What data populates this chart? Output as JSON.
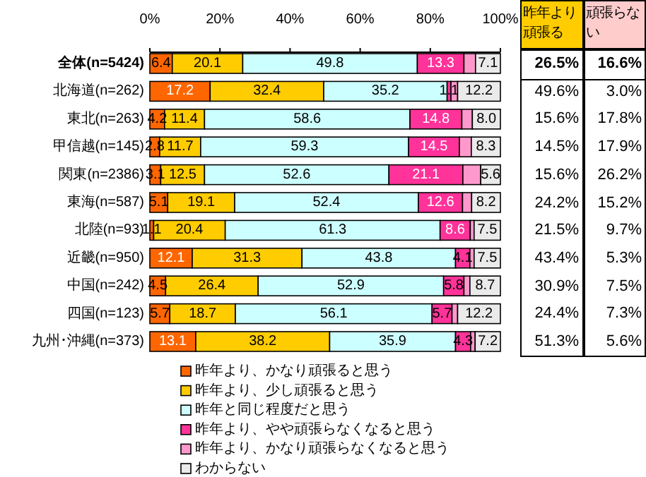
{
  "chart_data": [
    {
      "type": "bar",
      "orientation": "horizontal",
      "stacked": true,
      "legend": "bottom",
      "xlim": [
        0,
        100
      ],
      "xticks": [
        {
          "value": 0,
          "label": "0%"
        },
        {
          "value": 20,
          "label": "20%"
        },
        {
          "value": 40,
          "label": "40%"
        },
        {
          "value": 60,
          "label": "60%"
        },
        {
          "value": 80,
          "label": "80%"
        },
        {
          "value": 100,
          "label": "100%"
        }
      ],
      "categories": [
        "全体(n=5424)",
        "北海道(n=262)",
        "東北(n=263)",
        "甲信越(n=145)",
        "関東(n=2386)",
        "東海(n=587)",
        "北陸(n=93)",
        "近畿(n=950)",
        "中国(n=242)",
        "四国(n=123)",
        "九州･沖縄(n=373)"
      ],
      "series": [
        {
          "name": "昨年より、かなり頑張ると思う",
          "color": "#ff6600",
          "values": [
            6.4,
            17.2,
            4.2,
            2.8,
            3.1,
            5.1,
            1.1,
            12.1,
            4.5,
            5.7,
            13.1
          ],
          "value_labels": [
            "6.4",
            "17.2",
            "4.2",
            "2.8",
            "3.1",
            "5.1",
            "1.1",
            "12.1",
            "4.5",
            "5.7",
            "13.1"
          ]
        },
        {
          "name": "昨年より、少し頑張ると思う",
          "color": "#ffcc00",
          "values": [
            20.1,
            32.4,
            11.4,
            11.7,
            12.5,
            19.1,
            20.4,
            31.3,
            26.4,
            18.7,
            38.2
          ],
          "value_labels": [
            "20.1",
            "32.4",
            "11.4",
            "11.7",
            "12.5",
            "19.1",
            "20.4",
            "31.3",
            "26.4",
            "18.7",
            "38.2"
          ]
        },
        {
          "name": "昨年と同じ程度だと思う",
          "color": "#ccffff",
          "values": [
            49.8,
            35.2,
            58.6,
            59.3,
            52.6,
            52.4,
            61.3,
            43.8,
            52.9,
            56.1,
            35.9
          ],
          "value_labels": [
            "49.8",
            "35.2",
            "58.6",
            "59.3",
            "52.6",
            "52.4",
            "61.3",
            "43.8",
            "52.9",
            "56.1",
            "35.9"
          ]
        },
        {
          "name": "昨年より、やや頑張らなくなると思う",
          "color": "#ff3399",
          "values": [
            13.3,
            1.1,
            14.8,
            14.5,
            21.1,
            12.6,
            8.6,
            4.1,
            5.8,
            5.7,
            4.3
          ],
          "value_labels": [
            "13.3",
            "1.1",
            "14.8",
            "14.5",
            "21.1",
            "12.6",
            "8.6",
            "4.1",
            "5.8",
            "5.7",
            "4.3"
          ]
        },
        {
          "name": "昨年より、かなり頑張らなくなると思う",
          "color": "#ff99cc",
          "values": [
            3.3,
            1.9,
            3.0,
            3.4,
            5.1,
            2.6,
            1.1,
            1.2,
            1.7,
            1.6,
            1.3
          ]
        },
        {
          "name": "わからない",
          "color": "#eaeaea",
          "values": [
            7.1,
            12.2,
            8.0,
            8.3,
            5.6,
            8.2,
            7.5,
            7.5,
            8.7,
            12.2,
            7.2
          ],
          "value_labels": [
            "7.1",
            "12.2",
            "8.0",
            "8.3",
            "5.6",
            "8.2",
            "7.5",
            "7.5",
            "8.7",
            "12.2",
            "7.2"
          ]
        }
      ]
    },
    {
      "type": "other",
      "categories": [
        "昨年より頑張る",
        "頑張らない"
      ],
      "colors": [
        "#ffcc00",
        "#ffcccc"
      ],
      "cell_labels": [
        [
          "26.5%",
          "16.6%"
        ],
        [
          "49.6%",
          "3.0%"
        ],
        [
          "15.6%",
          "17.8%"
        ],
        [
          "14.5%",
          "17.9%"
        ],
        [
          "15.6%",
          "26.2%"
        ],
        [
          "24.2%",
          "15.2%"
        ],
        [
          "21.5%",
          "9.7%"
        ],
        [
          "43.4%",
          "5.3%"
        ],
        [
          "30.9%",
          "7.5%"
        ],
        [
          "24.4%",
          "7.3%"
        ],
        [
          "51.3%",
          "5.6%"
        ]
      ]
    }
  ]
}
